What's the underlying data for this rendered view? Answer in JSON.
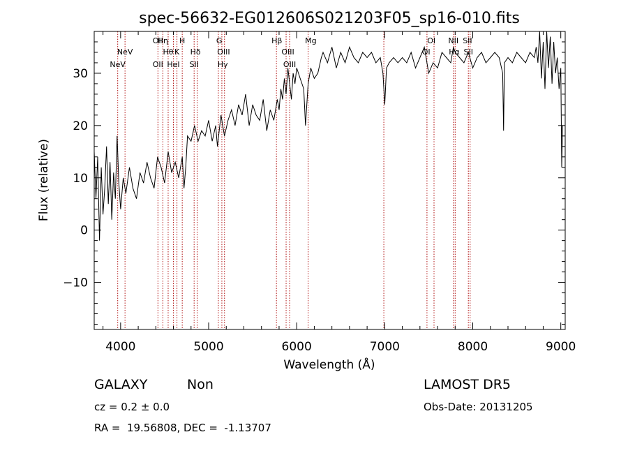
{
  "chart_data": {
    "type": "line",
    "title": "spec-56632-EG012606S021203F05_sp16-010.fits",
    "xlabel": "Wavelength (Å)",
    "ylabel": "Flux (relative)",
    "xlim": [
      3700,
      9050
    ],
    "ylim": [
      -19,
      38
    ],
    "xticks": [
      4000,
      5000,
      6000,
      7000,
      8000,
      9000
    ],
    "yticks": [
      -10,
      0,
      10,
      20,
      30
    ],
    "line_color": "#000000",
    "marker_color": "#b01010",
    "spectrum": {
      "x": [
        3700,
        3720,
        3740,
        3760,
        3780,
        3800,
        3820,
        3840,
        3860,
        3880,
        3900,
        3920,
        3940,
        3960,
        3980,
        4000,
        4030,
        4060,
        4100,
        4140,
        4180,
        4220,
        4260,
        4300,
        4340,
        4380,
        4420,
        4460,
        4500,
        4540,
        4580,
        4620,
        4660,
        4700,
        4720,
        4740,
        4760,
        4800,
        4840,
        4880,
        4920,
        4960,
        5000,
        5040,
        5080,
        5100,
        5140,
        5180,
        5220,
        5260,
        5300,
        5340,
        5380,
        5420,
        5460,
        5500,
        5540,
        5580,
        5620,
        5660,
        5700,
        5740,
        5780,
        5800,
        5820,
        5840,
        5860,
        5880,
        5900,
        5920,
        5940,
        5960,
        5980,
        6000,
        6040,
        6080,
        6100,
        6130,
        6160,
        6200,
        6240,
        6280,
        6300,
        6350,
        6400,
        6450,
        6500,
        6550,
        6600,
        6650,
        6700,
        6750,
        6800,
        6850,
        6900,
        6950,
        6980,
        7000,
        7020,
        7050,
        7100,
        7150,
        7200,
        7250,
        7300,
        7350,
        7400,
        7450,
        7500,
        7550,
        7600,
        7650,
        7700,
        7750,
        7780,
        7800,
        7850,
        7900,
        7950,
        8000,
        8050,
        8100,
        8150,
        8200,
        8250,
        8300,
        8340,
        8350,
        8360,
        8400,
        8450,
        8500,
        8550,
        8600,
        8650,
        8700,
        8720,
        8740,
        8760,
        8780,
        8800,
        8820,
        8840,
        8860,
        8880,
        8900,
        8920,
        8940,
        8960,
        8980,
        9000,
        9010,
        9020
      ],
      "y": [
        15,
        6,
        14,
        -2,
        12,
        3,
        8,
        16,
        5,
        13,
        2,
        11,
        6,
        18,
        9,
        4,
        10,
        7,
        12,
        8,
        6,
        11,
        9,
        13,
        10,
        8,
        14,
        12,
        9,
        15,
        11,
        13,
        10,
        14,
        8,
        12,
        18,
        17,
        20,
        17,
        19,
        18,
        21,
        17,
        20,
        16,
        22,
        18,
        21,
        23,
        20,
        24,
        22,
        26,
        20,
        24,
        22,
        21,
        25,
        19,
        23,
        21,
        25,
        23,
        27,
        25,
        29,
        26,
        31,
        28,
        25,
        30,
        28,
        31,
        29,
        27,
        20,
        28,
        31,
        29,
        30,
        33,
        34,
        32,
        35,
        31,
        34,
        32,
        35,
        33,
        32,
        34,
        33,
        34,
        32,
        33,
        30,
        24,
        31,
        32,
        33,
        32,
        33,
        32,
        34,
        31,
        33,
        35,
        30,
        32,
        31,
        34,
        33,
        32,
        35,
        34,
        33,
        32,
        34,
        31,
        33,
        34,
        32,
        33,
        34,
        33,
        30,
        19,
        32,
        33,
        32,
        34,
        33,
        32,
        34,
        33,
        35,
        32,
        38,
        29,
        36,
        27,
        38,
        31,
        37,
        28,
        36,
        30,
        33,
        27,
        31,
        12,
        20
      ]
    },
    "lines": [
      {
        "label": "NeV",
        "x": 3967,
        "row": 3
      },
      {
        "label": "NeV",
        "x": 4050,
        "row": 2
      },
      {
        "label": "OII",
        "x": 4424,
        "row": 1
      },
      {
        "label": "OII",
        "x": 4424,
        "row": 3
      },
      {
        "label": "Hη",
        "x": 4480,
        "row": 1
      },
      {
        "label": "Hθ",
        "x": 4540,
        "row": 2
      },
      {
        "label": "HeI",
        "x": 4600,
        "row": 3
      },
      {
        "label": "K",
        "x": 4640,
        "row": 2
      },
      {
        "label": "H",
        "x": 4700,
        "row": 1
      },
      {
        "label": "Hδ",
        "x": 4850,
        "row": 2
      },
      {
        "label": "SII",
        "x": 4835,
        "row": 3
      },
      {
        "label": "G",
        "x": 5120,
        "row": 1
      },
      {
        "label": "OIII",
        "x": 5170,
        "row": 2
      },
      {
        "label": "Hγ",
        "x": 5160,
        "row": 3
      },
      {
        "label": "Hβ",
        "x": 5775,
        "row": 1
      },
      {
        "label": "OIII",
        "x": 5900,
        "row": 2
      },
      {
        "label": "OIII",
        "x": 5920,
        "row": 3
      },
      {
        "label": "Mg",
        "x": 6160,
        "row": 1
      },
      {
        "label": "",
        "x": 6980,
        "row": 0
      },
      {
        "label": "OI",
        "x": 7530,
        "row": 1
      },
      {
        "label": "OI",
        "x": 7470,
        "row": 2
      },
      {
        "label": "NII",
        "x": 7780,
        "row": 1
      },
      {
        "label": "Hα",
        "x": 7790,
        "row": 2
      },
      {
        "label": "SII",
        "x": 7940,
        "row": 1
      },
      {
        "label": "SII",
        "x": 7950,
        "row": 2
      }
    ],
    "line_marks": [
      3967,
      4050,
      4424,
      4480,
      4540,
      4600,
      4640,
      4700,
      4835,
      4870,
      5110,
      5150,
      5180,
      5770,
      5880,
      5920,
      6130,
      6990,
      7480,
      7560,
      7780,
      7800,
      7950,
      7970
    ]
  },
  "footer": {
    "object_class": "GALAXY",
    "subclass": "Non",
    "cz": "cz = 0.2 ± 0.0",
    "coords": "RA =  19.56808, DEC =  -1.13707",
    "survey": "LAMOST DR5",
    "obs_date": "Obs-Date: 20131205"
  }
}
